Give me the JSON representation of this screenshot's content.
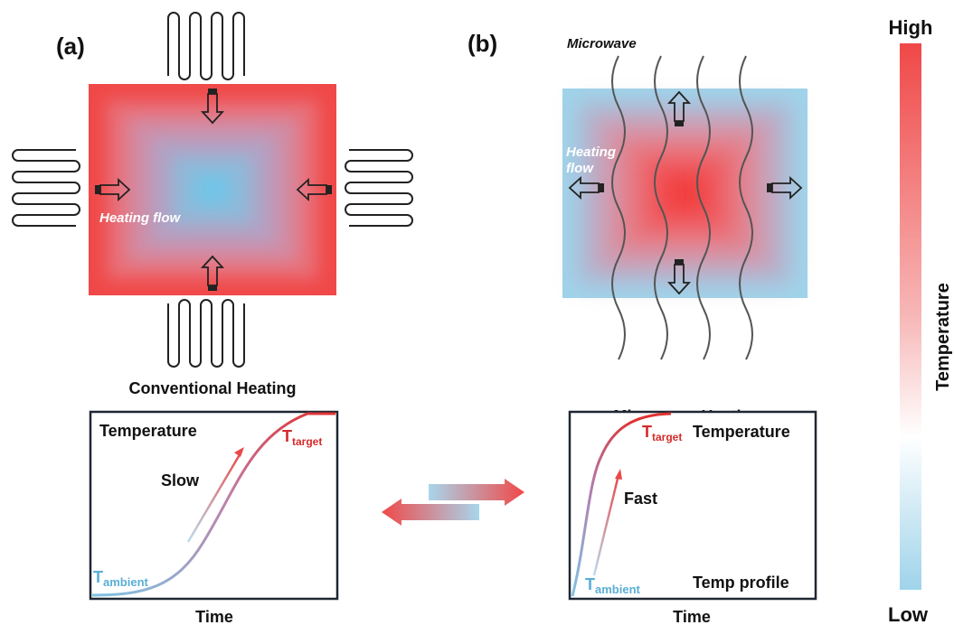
{
  "panels": {
    "a": {
      "label": "(a)",
      "inner_label": "Heating flow",
      "title": "Conventional Heating",
      "graph": {
        "y_label": "Temperature",
        "speed_label": "Slow",
        "t_target_main": "T",
        "t_target_sub": "target",
        "t_ambient_main": "T",
        "t_ambient_sub": "ambient",
        "x_label": "Time"
      }
    },
    "b": {
      "label": "(b)",
      "source_label": "Microwave",
      "inner_label_line1": "Heating",
      "inner_label_line2": "flow",
      "title": "Microwave Heating",
      "graph": {
        "y_label": "Temperature",
        "speed_label": "Fast",
        "t_target_main": "T",
        "t_target_sub": "target",
        "t_ambient_main": "T",
        "t_ambient_sub": "ambient",
        "profile_label": "Temp profile",
        "x_label": "Time"
      }
    }
  },
  "colorbar": {
    "high_label": "High",
    "low_label": "Low",
    "axis_label": "Temperature"
  },
  "colors": {
    "hot": "#f04848",
    "cold": "#9fd3ea",
    "target_text": "#d42a2a",
    "ambient_text": "#5aaed6"
  }
}
